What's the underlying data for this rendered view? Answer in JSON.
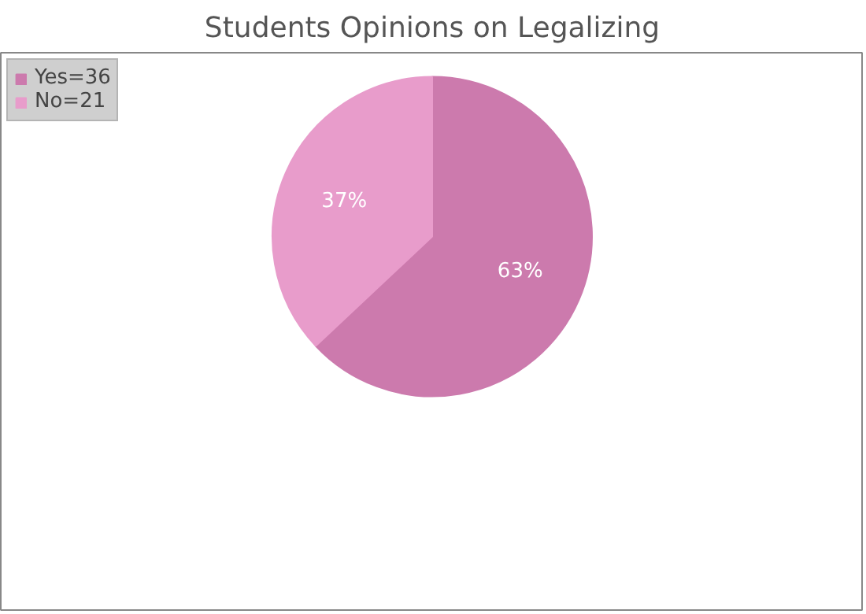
{
  "chart_data": {
    "type": "pie",
    "title": "Students Opinions on Legalizing",
    "categories": [
      "Yes=36",
      "No=21"
    ],
    "values": [
      63,
      37
    ],
    "colors": [
      "#cc7aad",
      "#e89ccb"
    ],
    "value_labels": [
      "63%",
      "37%"
    ],
    "legend": "top left"
  }
}
